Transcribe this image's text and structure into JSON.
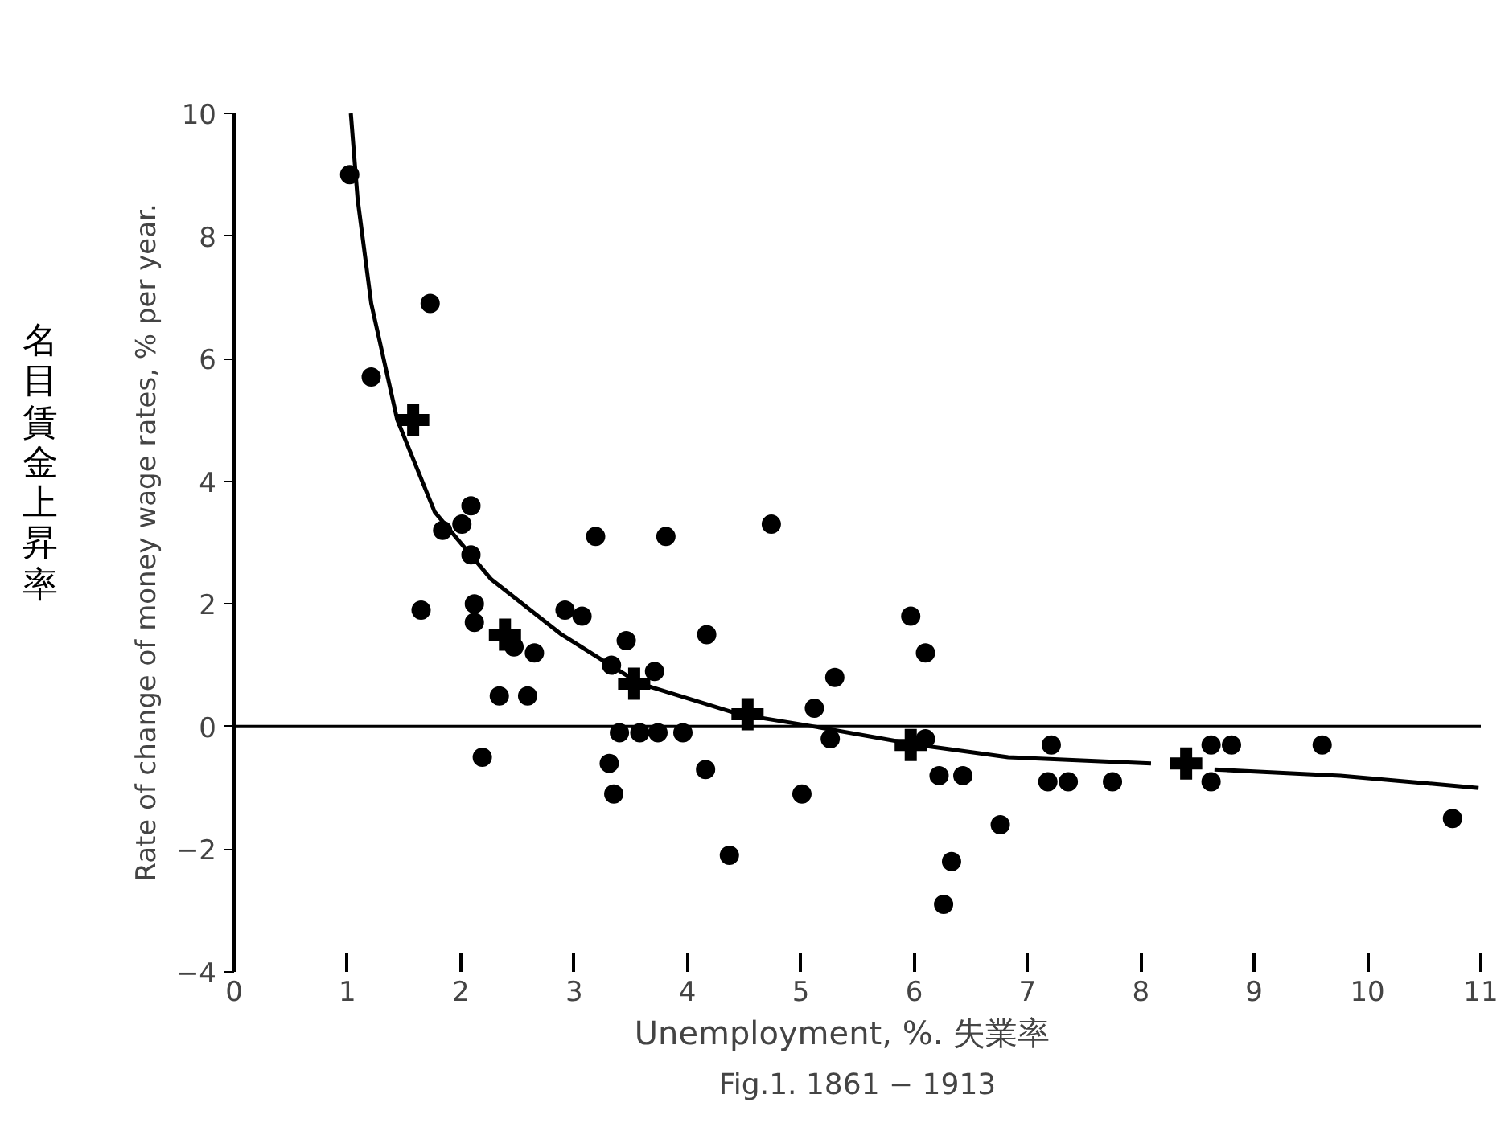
{
  "chart_data": {
    "type": "scatter",
    "ylabel": "Rate of change of money wage rates, % per year.",
    "xlabel": "Unemployment,    %. 失業率",
    "annotations": [
      "名目賃金上昇率",
      "Fig.1. 1861 − 1913"
    ],
    "xlim": [
      0,
      11
    ],
    "ylim": [
      -4,
      10
    ],
    "xticks": [
      0,
      1,
      2,
      3,
      4,
      5,
      6,
      7,
      8,
      9,
      10,
      11
    ],
    "yticks": [
      -4,
      -2,
      0,
      2,
      4,
      6,
      8,
      10
    ],
    "grid": false,
    "ref_lines": [
      {
        "axis": "y",
        "value": 0,
        "color": "#000000"
      }
    ],
    "series": [
      {
        "marker": "circle",
        "color": "#000000",
        "x": [
          1.02,
          1.73,
          1.21,
          2.09,
          1.84,
          2.01,
          2.09,
          1.65,
          2.12,
          2.12,
          2.47,
          2.65,
          2.34,
          2.59,
          2.19,
          3.19,
          3.81,
          2.92,
          3.07,
          3.46,
          4.17,
          3.33,
          3.71,
          3.4,
          3.58,
          3.74,
          3.96,
          3.31,
          3.35,
          4.16,
          4.37,
          4.74,
          5.97,
          6.1,
          5.3,
          5.12,
          5.26,
          5.01,
          6.1,
          6.22,
          6.43,
          6.33,
          6.26,
          6.76,
          7.21,
          7.18,
          7.36,
          7.75,
          8.62,
          8.8,
          8.62,
          9.6,
          10.75
        ],
        "values": [
          9.0,
          6.9,
          5.7,
          3.6,
          3.2,
          3.3,
          2.8,
          1.9,
          2.0,
          1.7,
          1.3,
          1.2,
          0.5,
          0.5,
          -0.5,
          3.1,
          3.1,
          1.9,
          1.8,
          1.4,
          1.5,
          1.0,
          0.9,
          -0.1,
          -0.1,
          -0.1,
          -0.1,
          -0.6,
          -1.1,
          -0.7,
          -2.1,
          3.3,
          1.8,
          1.2,
          0.8,
          0.3,
          -0.2,
          -1.1,
          -0.2,
          -0.8,
          -0.8,
          -2.2,
          -2.9,
          -1.6,
          -0.3,
          -0.9,
          -0.9,
          -0.9,
          -0.3,
          -0.3,
          -0.9,
          -0.3,
          -1.5
        ]
      },
      {
        "marker": "cross",
        "color": "#000000",
        "x": [
          1.58,
          2.39,
          3.53,
          4.53,
          5.97,
          8.4
        ],
        "values": [
          5.0,
          1.5,
          0.7,
          0.2,
          -0.3,
          -0.6
        ]
      },
      {
        "type": "line",
        "color": "#000000",
        "x": [
          1.03,
          1.09,
          1.21,
          1.44,
          1.77,
          2.27,
          2.89,
          3.58,
          4.46,
          5.12,
          6.04,
          6.83,
          8.09,
          8.4,
          8.65,
          9.76,
          10.98
        ],
        "values": [
          10.0,
          8.6,
          6.9,
          5.0,
          3.5,
          2.4,
          1.5,
          0.7,
          0.2,
          0.0,
          -0.3,
          -0.5,
          -0.6,
          null,
          -0.7,
          -0.8,
          -1.0
        ]
      }
    ]
  }
}
